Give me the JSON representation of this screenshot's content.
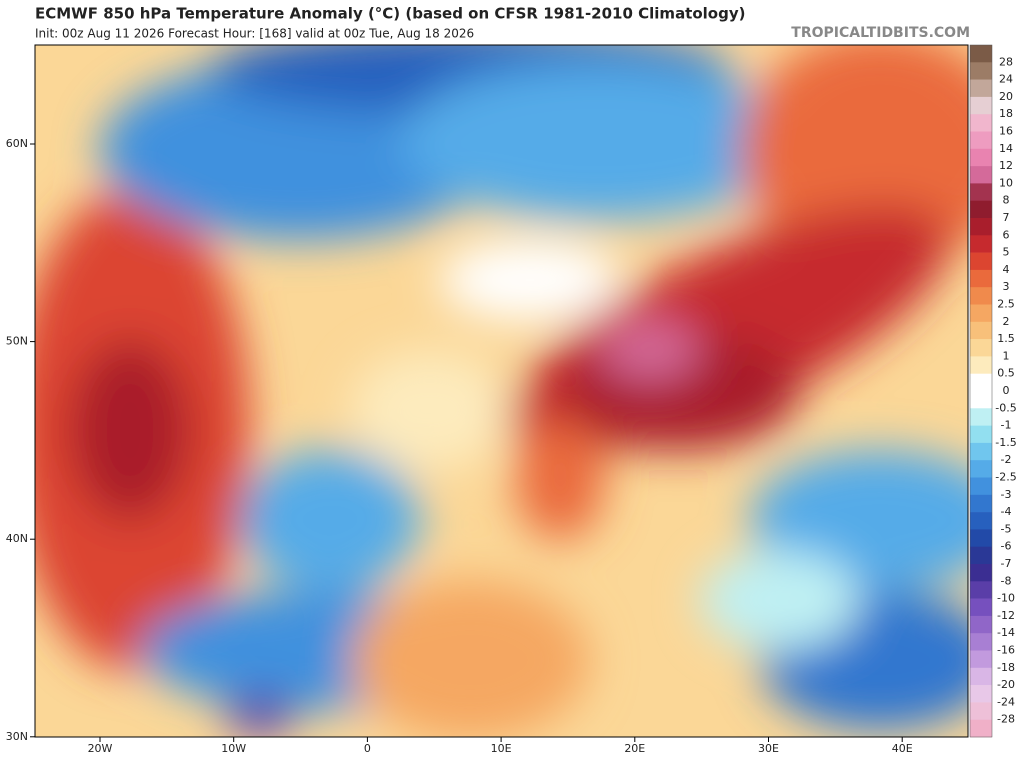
{
  "header": {
    "title": "ECMWF 850 hPa Temperature Anomaly (°C) (based on CFSR 1981-2010 Climatology)",
    "subtitle": "Init: 00z Aug 11 2026   Forecast Hour: [168]   valid at 00z Tue, Aug 18 2026",
    "brand": "TROPICALTIDBITS.COM"
  },
  "map": {
    "lat_labels": [
      "60N",
      "50N",
      "40N",
      "30N"
    ],
    "lon_labels": [
      "20W",
      "10W",
      "0",
      "10E",
      "20E",
      "30E",
      "40E"
    ]
  },
  "colorbar": {
    "ticks": [
      28,
      24,
      20,
      18,
      16,
      14,
      12,
      10,
      8,
      7,
      6,
      5,
      4,
      3,
      2.5,
      2,
      1.5,
      1,
      0.5,
      0,
      -0.5,
      -1,
      -1.5,
      -2,
      -2.5,
      -3,
      -4,
      -5,
      -6,
      -7,
      -8,
      -10,
      -12,
      -14,
      -16,
      -18,
      -20,
      -24,
      -28
    ],
    "colors": [
      "#7b5b47",
      "#9c7c66",
      "#c2a79a",
      "#e6cfd3",
      "#f1b6cd",
      "#ee9cc0",
      "#e983b0",
      "#d46a9a",
      "#a3334f",
      "#8f1c2e",
      "#a91e2c",
      "#c62a2e",
      "#dc4530",
      "#ea6a3c",
      "#f08a4c",
      "#f5a762",
      "#f8c07a",
      "#fbd797",
      "#fdebbd",
      "#ffffff",
      "#ffffff",
      "#bff0f3",
      "#92dff0",
      "#70c6ee",
      "#55abe8",
      "#4191de",
      "#3277cf",
      "#2760be",
      "#224aa8",
      "#2a3896",
      "#3b2e92",
      "#5a3ea8",
      "#7650be",
      "#9066c8",
      "#a87fd3",
      "#c29ade",
      "#d9b6e6",
      "#e8c8e8",
      "#eec0d8",
      "#f0b0c8"
    ]
  }
}
